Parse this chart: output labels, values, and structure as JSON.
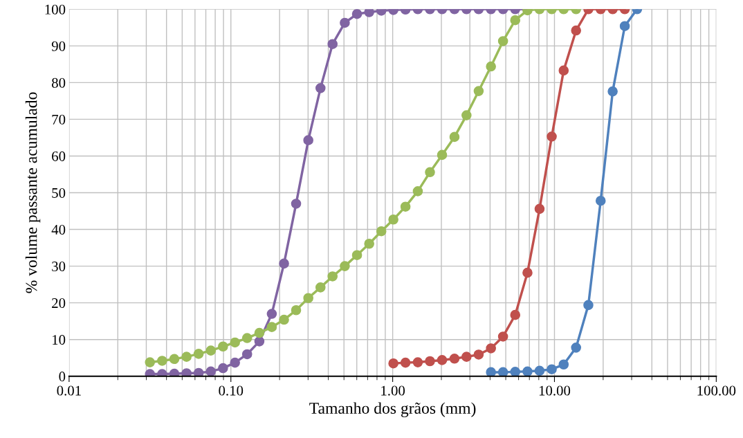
{
  "chart_data": {
    "type": "line",
    "xlabel": "Tamanho dos grãos (mm)",
    "ylabel": "% volume passante acumulado",
    "log": "x",
    "xlim": [
      0.01,
      100
    ],
    "ylim": [
      0,
      100
    ],
    "xticks": [
      {
        "value": 0.01,
        "label": "0.01"
      },
      {
        "value": 0.1,
        "label": "0.10"
      },
      {
        "value": 1,
        "label": "1.00"
      },
      {
        "value": 10,
        "label": "10.00"
      },
      {
        "value": 100,
        "label": "100.00"
      }
    ],
    "yticks": [
      0,
      10,
      20,
      30,
      40,
      50,
      60,
      70,
      80,
      90,
      100
    ],
    "grid": true,
    "marker": "circle",
    "line_style": "solid",
    "series": [
      {
        "color": "#8064a2",
        "x": [
          0.0316,
          0.0376,
          0.0447,
          0.0532,
          0.0632,
          0.0752,
          0.0894,
          0.106,
          0.126,
          0.15,
          0.179,
          0.213,
          0.253,
          0.301,
          0.358,
          0.425,
          0.506,
          0.602,
          0.716,
          0.851,
          1.01,
          1.2,
          1.43,
          1.7,
          2.02,
          2.41,
          2.86,
          3.4,
          4.05,
          4.81,
          5.72,
          6.81
        ],
        "values": [
          0.6,
          0.6,
          0.7,
          0.8,
          0.9,
          1.3,
          2.2,
          3.7,
          6.0,
          9.5,
          17.0,
          30.7,
          47.0,
          64.3,
          78.5,
          90.5,
          96.3,
          98.7,
          99.2,
          99.6,
          99.8,
          99.9,
          100,
          100,
          100,
          100,
          100,
          100,
          100,
          100,
          100,
          100
        ]
      },
      {
        "color": "#9bbb59",
        "x": [
          0.0316,
          0.0376,
          0.0447,
          0.0532,
          0.0632,
          0.0752,
          0.0894,
          0.106,
          0.126,
          0.15,
          0.179,
          0.213,
          0.253,
          0.301,
          0.358,
          0.425,
          0.506,
          0.602,
          0.716,
          0.851,
          1.01,
          1.2,
          1.43,
          1.7,
          2.02,
          2.41,
          2.86,
          3.4,
          4.05,
          4.81,
          5.72,
          6.81,
          8.09,
          9.62,
          11.4,
          13.6
        ],
        "values": [
          3.8,
          4.2,
          4.7,
          5.3,
          6.1,
          7.0,
          8.1,
          9.2,
          10.4,
          11.8,
          13.4,
          15.4,
          18.0,
          21.3,
          24.2,
          27.2,
          30.0,
          33.0,
          36.1,
          39.5,
          42.7,
          46.2,
          50.4,
          55.6,
          60.3,
          65.2,
          71.1,
          77.7,
          84.4,
          91.3,
          97.0,
          99.7,
          100,
          100,
          100,
          100
        ]
      },
      {
        "color": "#c0504d",
        "x": [
          1.01,
          1.2,
          1.43,
          1.7,
          2.02,
          2.41,
          2.86,
          3.4,
          4.05,
          4.81,
          5.72,
          6.81,
          8.09,
          9.62,
          11.4,
          13.6,
          16.2,
          19.3,
          22.9,
          27.2
        ],
        "values": [
          3.5,
          3.7,
          3.8,
          4.1,
          4.4,
          4.8,
          5.3,
          5.9,
          7.6,
          10.8,
          16.7,
          28.2,
          45.6,
          65.3,
          83.3,
          94.2,
          100,
          100,
          100,
          100
        ]
      },
      {
        "color": "#4f81bd",
        "x": [
          4.05,
          4.81,
          5.72,
          6.81,
          8.09,
          9.62,
          11.4,
          13.6,
          16.2,
          19.3,
          22.9,
          27.2,
          32.4
        ],
        "values": [
          1.1,
          1.1,
          1.2,
          1.3,
          1.5,
          1.9,
          3.2,
          7.8,
          19.4,
          47.8,
          77.6,
          95.4,
          100
        ]
      }
    ]
  }
}
